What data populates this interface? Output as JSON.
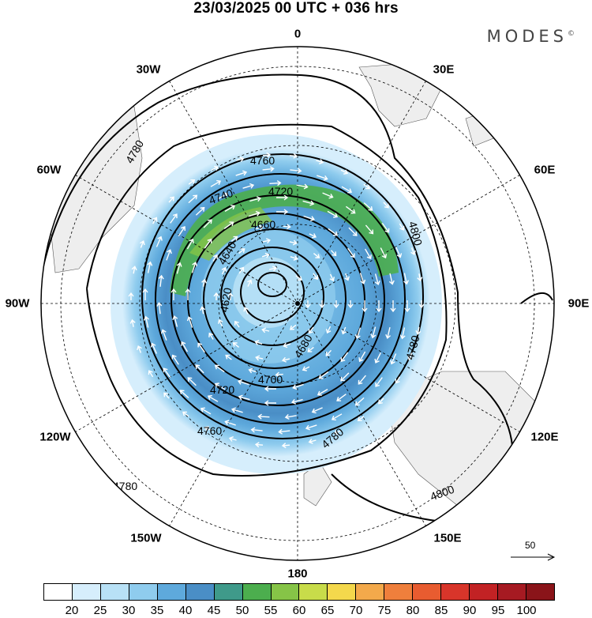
{
  "header": {
    "title": "23/03/2025  00 UTC  + 036 hrs",
    "brand": "MODES",
    "brand_mark": "©"
  },
  "map": {
    "projection": "south-polar-stereographic",
    "longitude_labels": [
      "0",
      "30E",
      "60E",
      "90E",
      "120E",
      "150E",
      "180",
      "150W",
      "120W",
      "90W",
      "60W",
      "30W"
    ],
    "contour_labels": [
      "4640",
      "4660",
      "4680",
      "4700",
      "4720",
      "4740",
      "4760",
      "4780",
      "4800",
      "4620"
    ],
    "contour_interval_m": 20,
    "wind_shading_colors": [
      "#ffffff",
      "#d6eefc",
      "#b8e1f6",
      "#8fccee",
      "#5ea9dc",
      "#4a8ec6",
      "#3f9a8a",
      "#4cae4e",
      "#86c447",
      "#c8dc4a",
      "#f4d84c",
      "#f3a94b",
      "#ef7f3c",
      "#e85c30",
      "#d8352a",
      "#c22224",
      "#a61a22",
      "#8a1419"
    ],
    "land_color": "#eeeeee"
  },
  "colorbar": {
    "ticks": [
      "20",
      "25",
      "30",
      "35",
      "40",
      "45",
      "50",
      "55",
      "60",
      "65",
      "70",
      "75",
      "80",
      "85",
      "90",
      "95",
      "100"
    ]
  },
  "reference_vector": {
    "label": "50"
  }
}
